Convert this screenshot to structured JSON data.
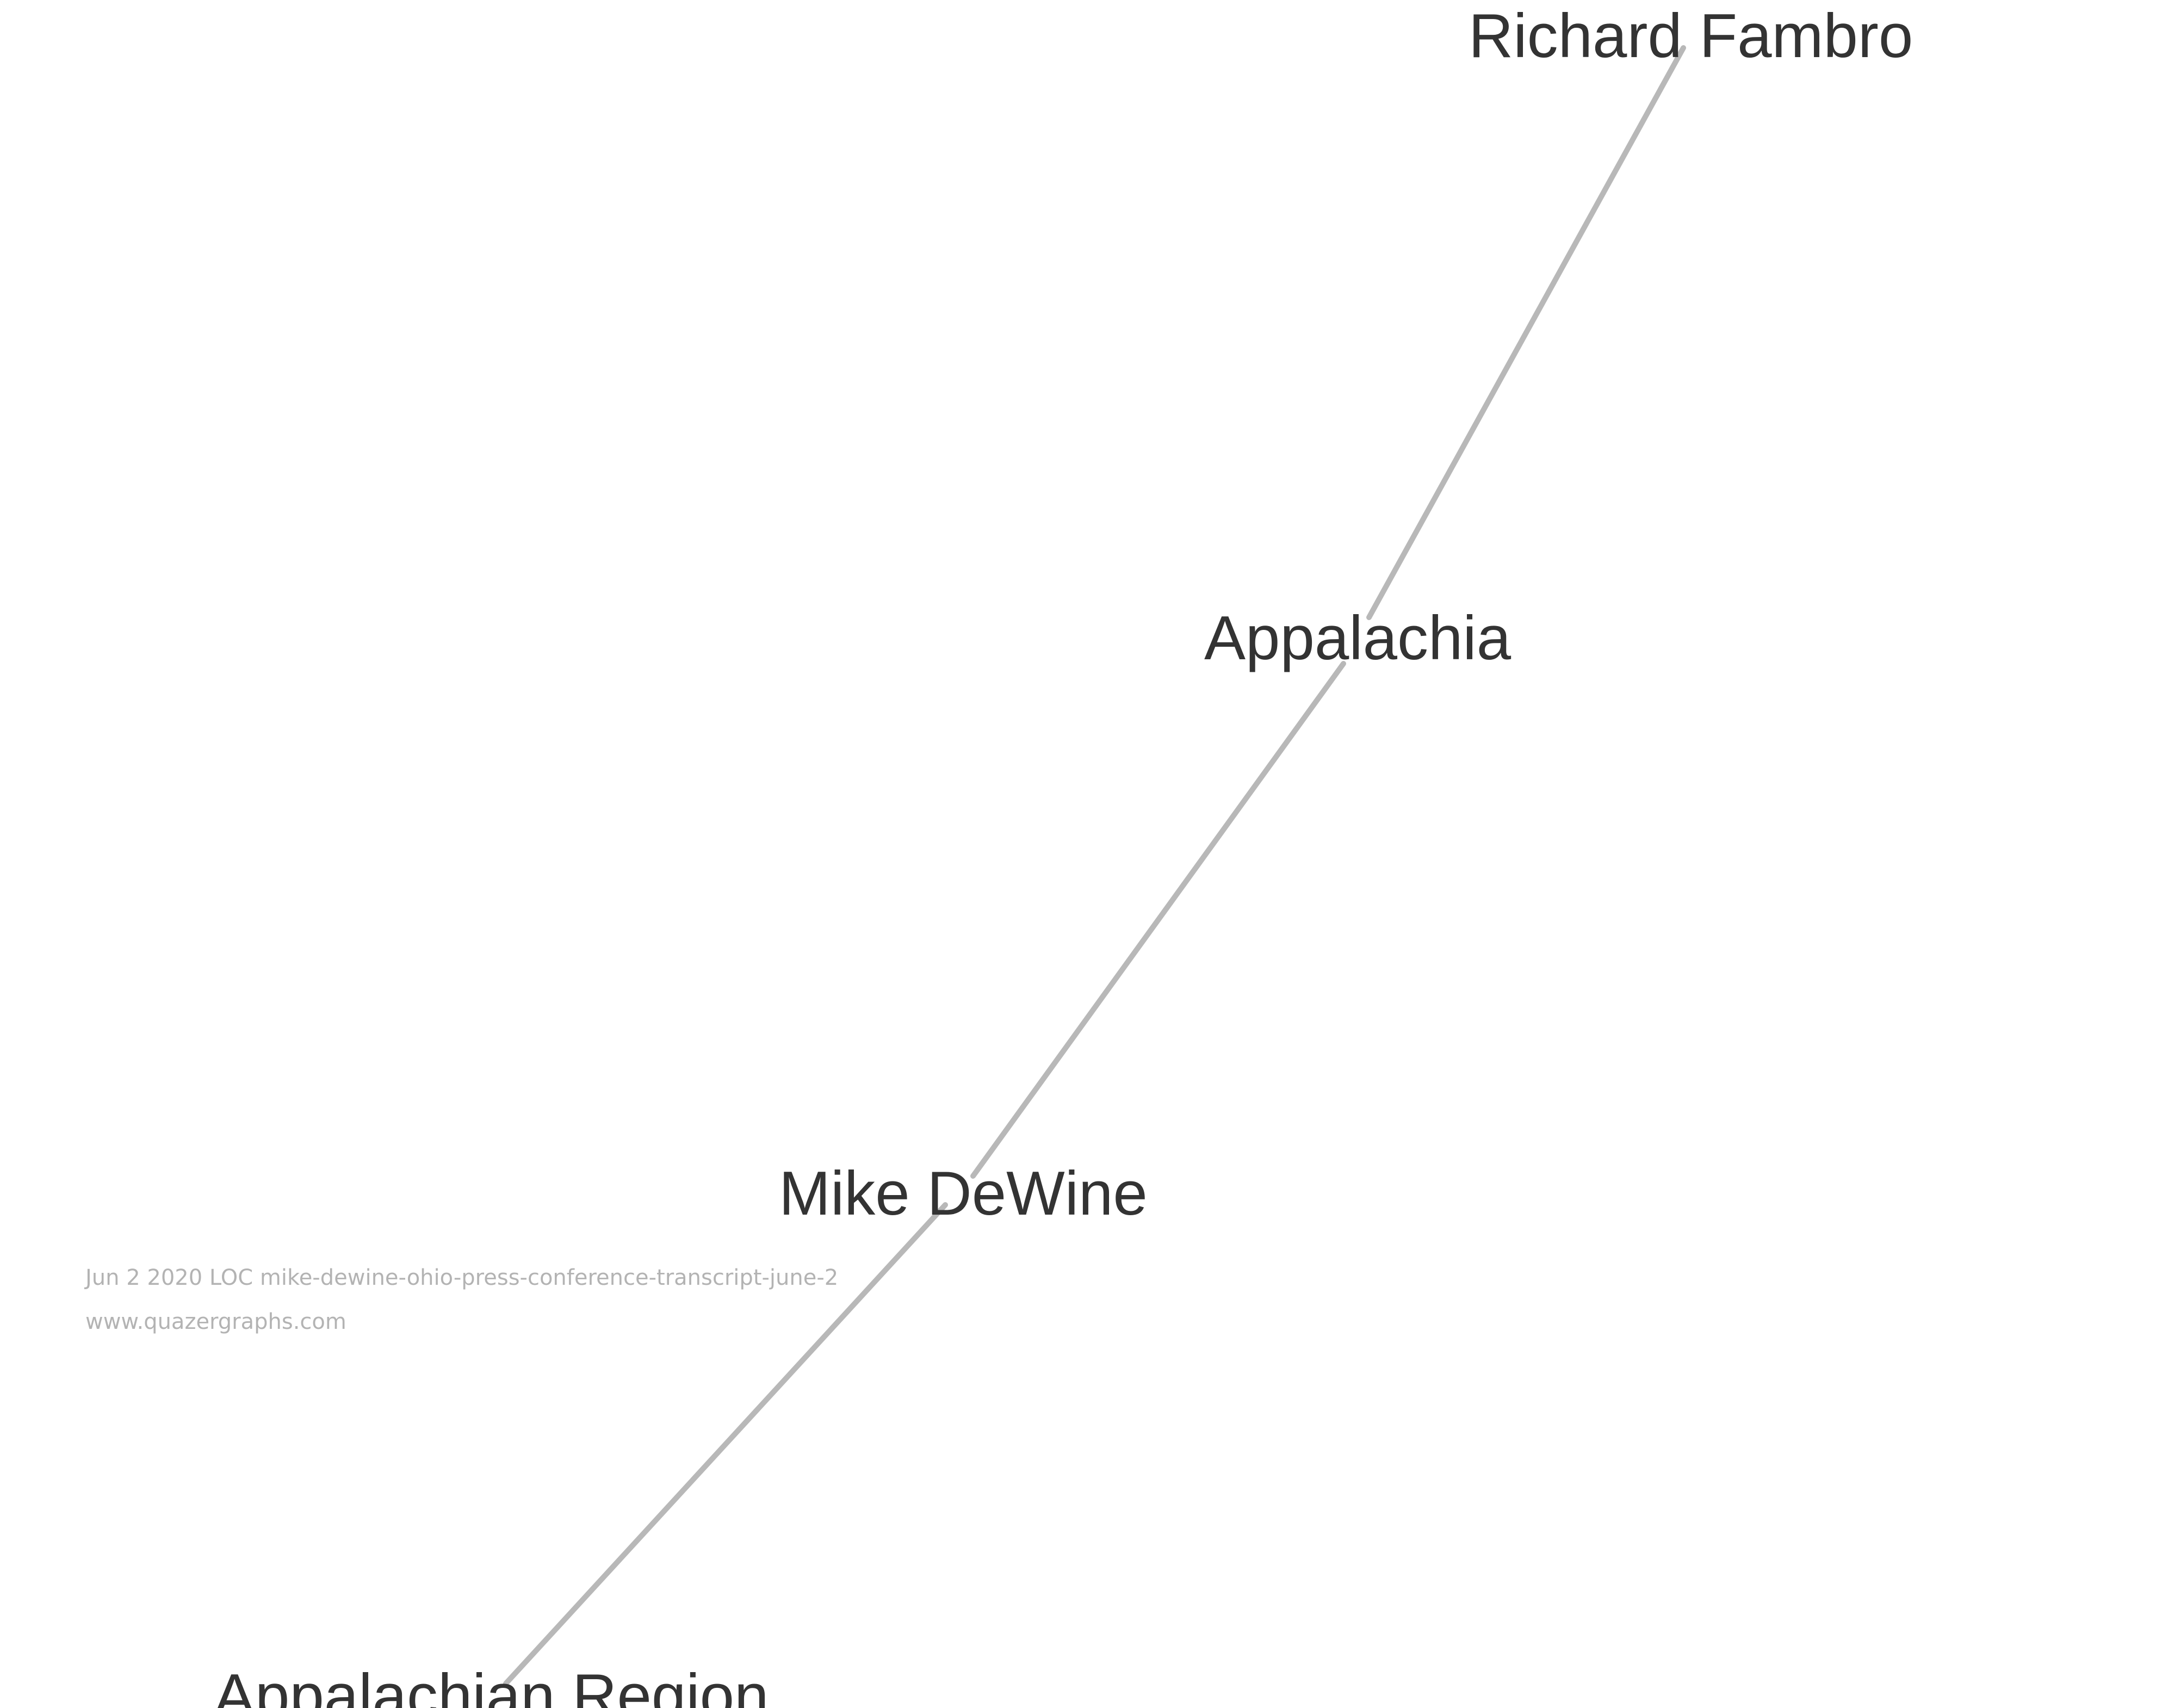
{
  "graph": {
    "nodes": [
      {
        "id": "richard-fambro",
        "label": "Richard Fambro"
      },
      {
        "id": "appalachia",
        "label": "Appalachia"
      },
      {
        "id": "mike-dewine",
        "label": "Mike DeWine"
      },
      {
        "id": "appalachian-region",
        "label": "Appalachian Region"
      }
    ],
    "edges": [
      {
        "source": "richard-fambro",
        "target": "appalachia"
      },
      {
        "source": "appalachia",
        "target": "mike-dewine"
      },
      {
        "source": "mike-dewine",
        "target": "appalachian-region"
      }
    ]
  },
  "caption": {
    "source_line": "Jun 2 2020 LOC mike-dewine-ohio-press-conference-transcript-june-2",
    "website": "www.quazergraphs.com"
  },
  "colors": {
    "edge": "#b8b8b8",
    "label": "#333333",
    "caption": "#b3b3b3",
    "background": "#ffffff"
  }
}
